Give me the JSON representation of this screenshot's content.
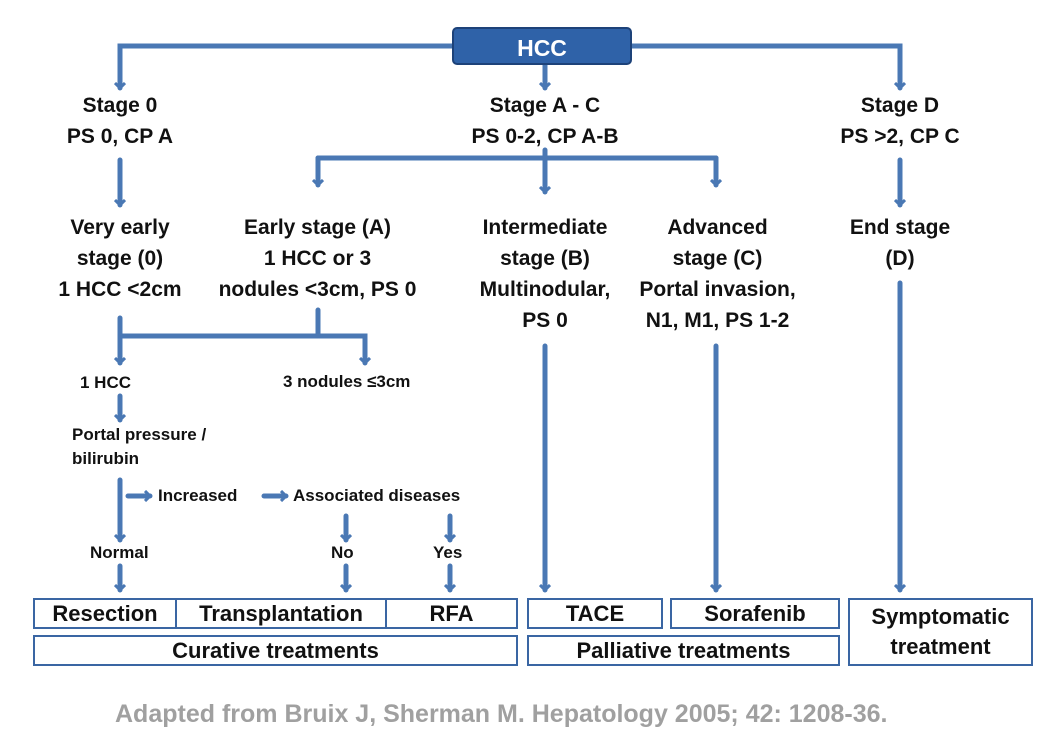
{
  "root": "HCC",
  "stages": {
    "stage0": "Stage 0\nPS 0, CP A",
    "stageAC": "Stage A - C\nPS 0-2, CP A-B",
    "stageD": "Stage D\nPS >2, CP C"
  },
  "substages": {
    "very_early": "Very early\nstage (0)\n1 HCC <2cm",
    "early": "Early stage (A)\n1 HCC or 3\nnodules <3cm, PS 0",
    "intermediate": "Intermediate\nstage (B)\nMultinodular,\nPS 0",
    "advanced": "Advanced\nstage (C)\nPortal invasion,\nN1, M1, PS 1-2",
    "end": "End stage\n(D)"
  },
  "branches": {
    "one_hcc": "1 HCC",
    "three_nodules": "3 nodules ≤3cm",
    "portal": "Portal pressure /\nbilirubin",
    "increased": "Increased",
    "associated": "Associated diseases",
    "normal": "Normal",
    "no": "No",
    "yes": "Yes"
  },
  "treatments": {
    "resection": "Resection",
    "transplantation": "Transplantation",
    "rfa": "RFA",
    "tace": "TACE",
    "sorafenib": "Sorafenib",
    "symptomatic": "Symptomatic\ntreatment",
    "curative": "Curative treatments",
    "palliative": "Palliative treatments"
  },
  "citation": "Adapted from Bruix J, Sherman M. Hepatology 2005; 42: 1208-36.",
  "colors": {
    "line": "#4a78b4",
    "root_fill": "#2f62a8",
    "citation": "#a0a0a0"
  }
}
